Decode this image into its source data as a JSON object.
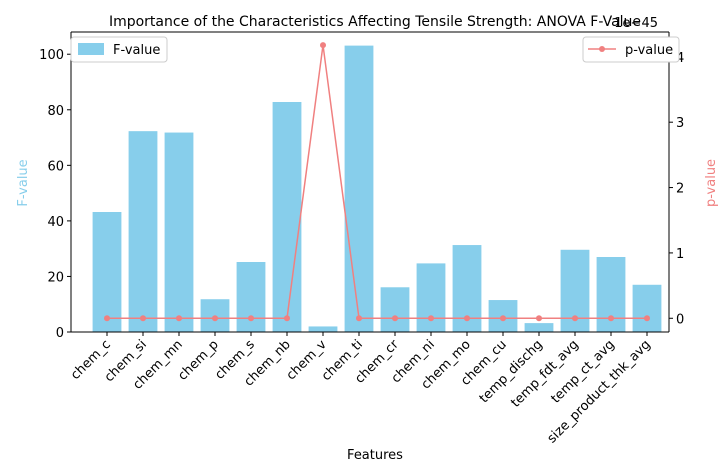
{
  "chart_data": {
    "type": "bar",
    "title": "Importance of the Characteristics Affecting Tensile Strength: ANOVA F-Value",
    "xlabel": "Features",
    "ylabel_left": "F-value",
    "ylabel_right": "p-value",
    "right_axis_offset_label": "1e−45",
    "categories": [
      "chem_c",
      "chem_si",
      "chem_mn",
      "chem_p",
      "chem_s",
      "chem_nb",
      "chem_v",
      "chem_ti",
      "chem_cr",
      "chem_ni",
      "chem_mo",
      "chem_cu",
      "temp_dischg",
      "temp_fdt_avg",
      "temp_ct_avg",
      "size_product_thk_avg"
    ],
    "series": [
      {
        "name": "F-value",
        "axis": "left",
        "kind": "bar",
        "color": "#87ceeb",
        "values": [
          43.2,
          72.3,
          71.8,
          11.8,
          25.2,
          82.8,
          2.0,
          103.1,
          16.1,
          24.7,
          31.3,
          11.5,
          3.2,
          29.6,
          27.0,
          17.0
        ]
      },
      {
        "name": "p-value",
        "axis": "right",
        "kind": "line",
        "color": "#f08080",
        "values": [
          0,
          0,
          0,
          0,
          0,
          0,
          4.18,
          0,
          0,
          0,
          0,
          0,
          0,
          0,
          0,
          0
        ]
      }
    ],
    "ylim_left": [
      0,
      108
    ],
    "yticks_left": [
      0,
      20,
      40,
      60,
      80,
      100
    ],
    "ylim_right": [
      -0.21,
      4.38
    ],
    "yticks_right": [
      0,
      1,
      2,
      3,
      4
    ],
    "legend_left": {
      "position": "upper-left",
      "label": "F-value"
    },
    "legend_right": {
      "position": "upper-right",
      "label": "p-value"
    }
  }
}
